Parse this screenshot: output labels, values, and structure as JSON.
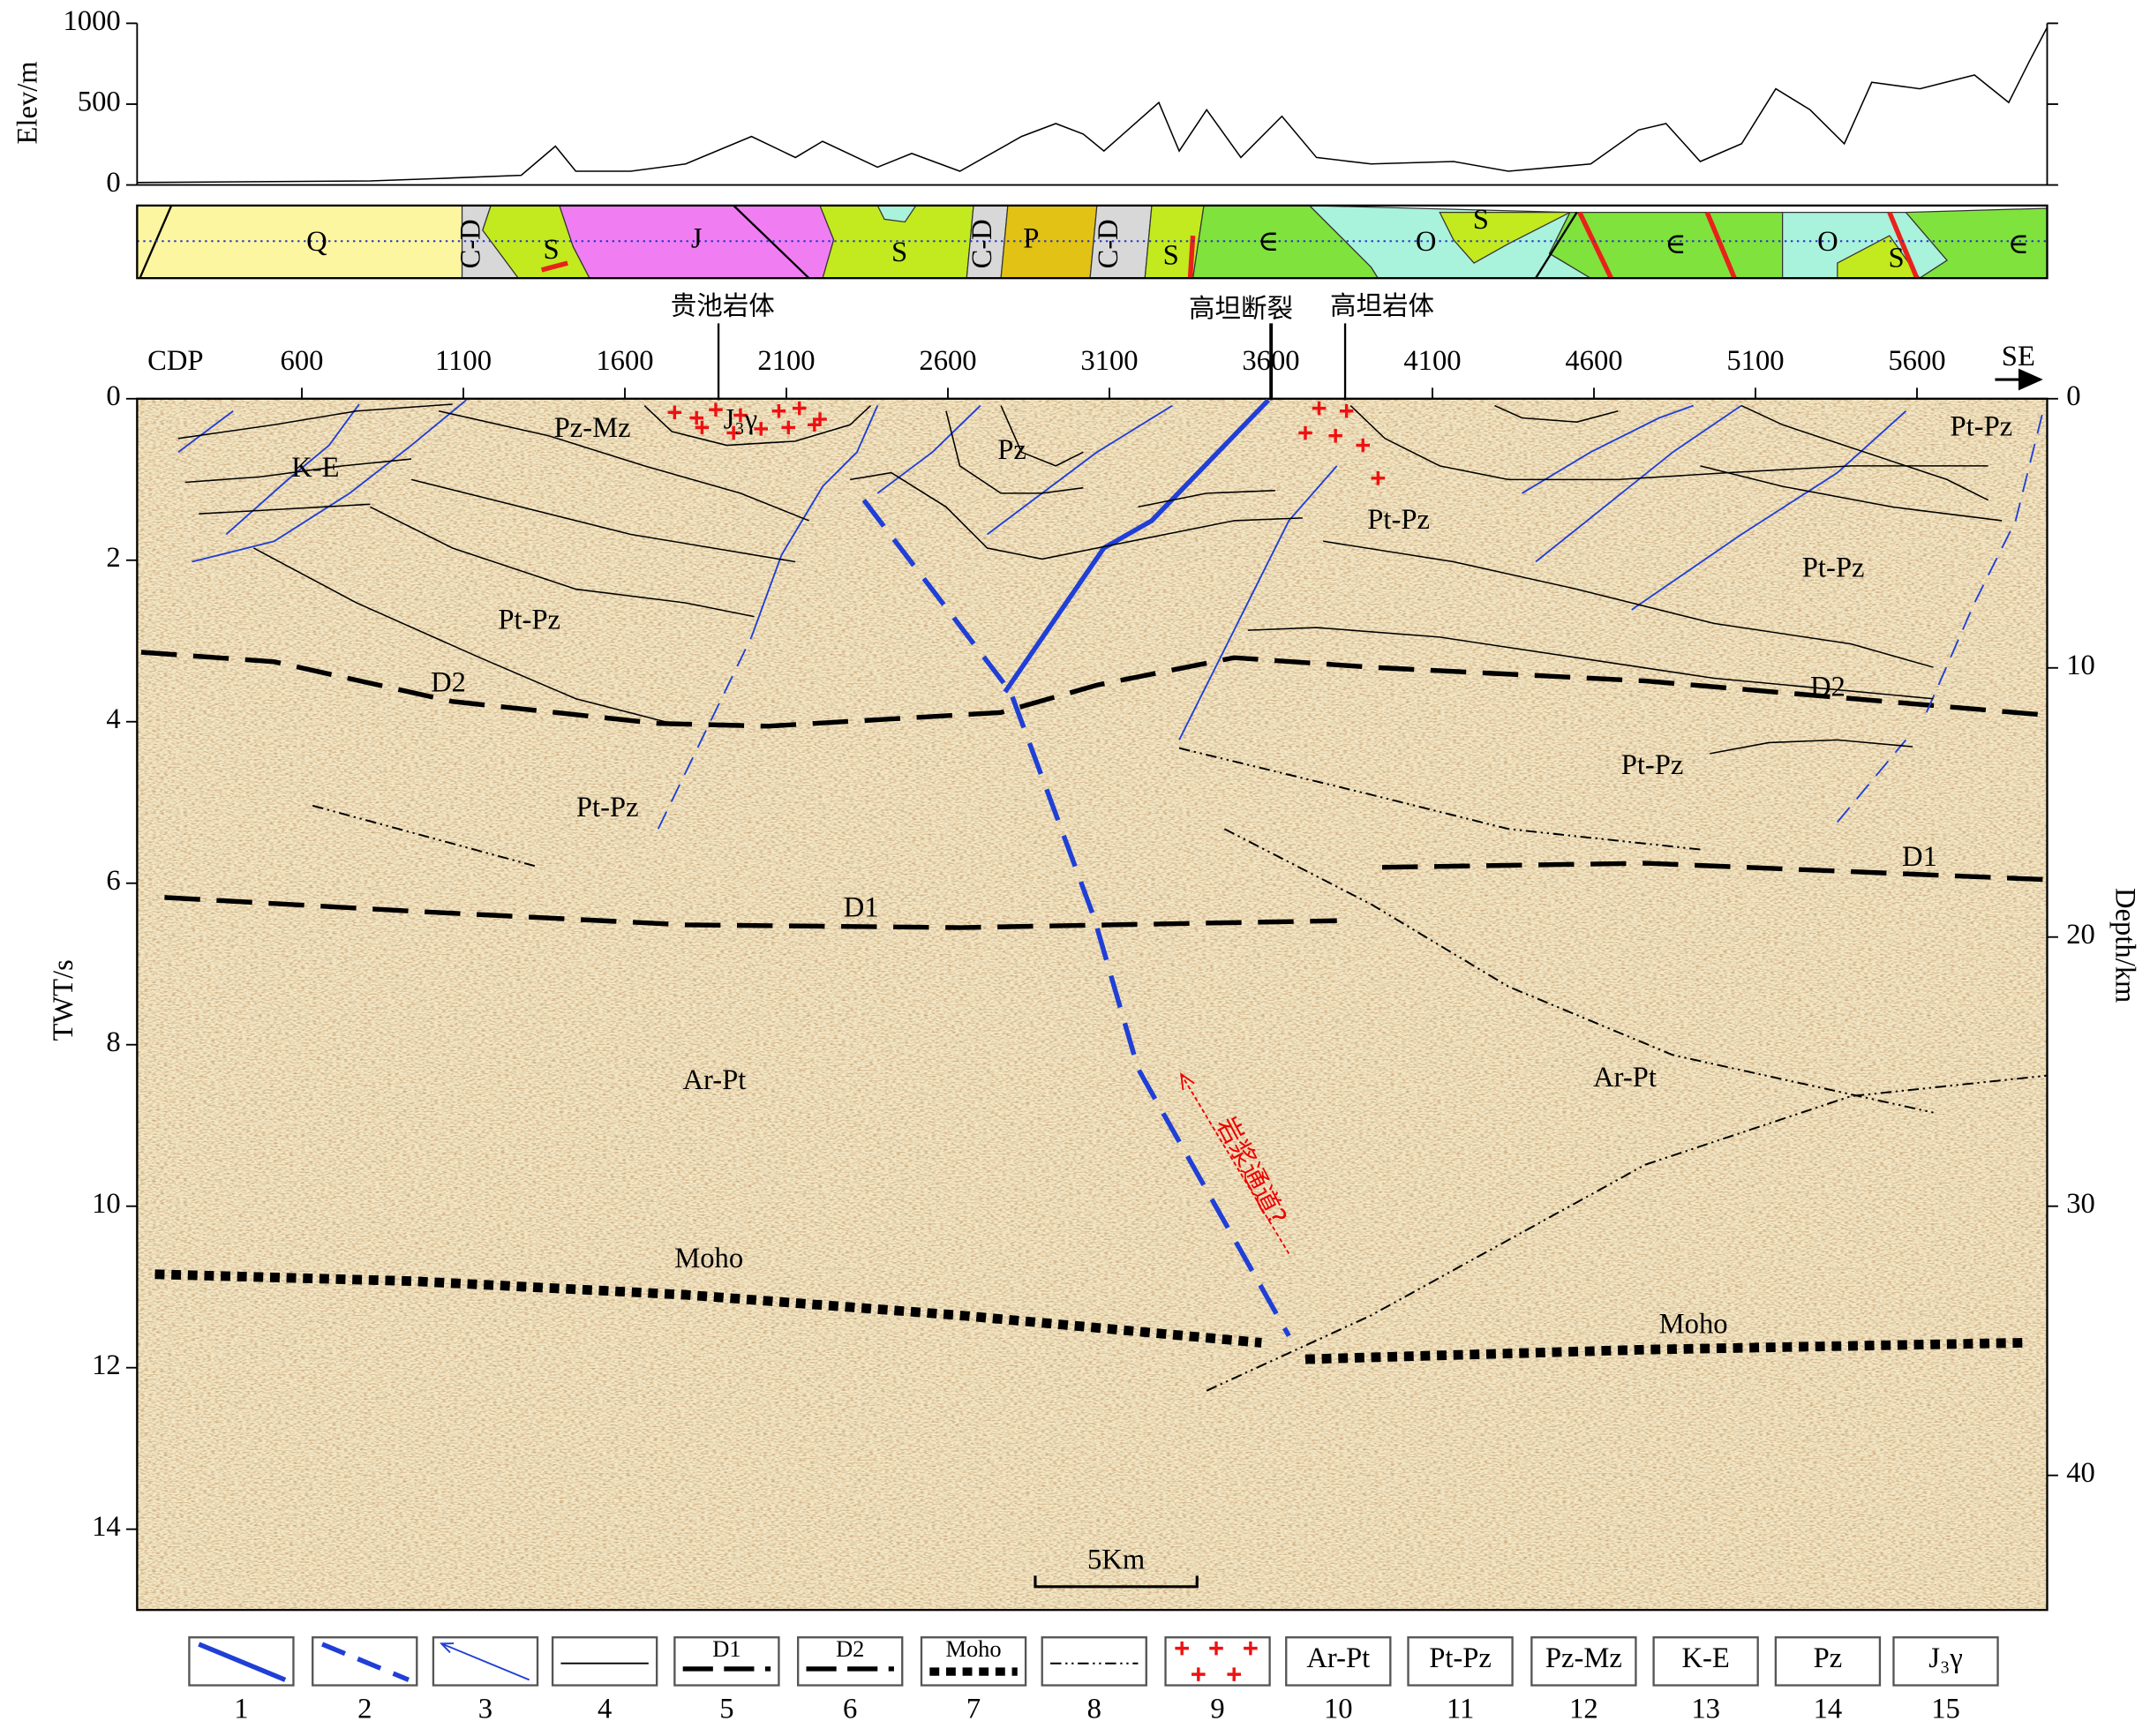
{
  "chart_data": [
    {
      "type": "line",
      "y_label": "Elev/m",
      "color": "#000000",
      "x": [
        90,
        812,
        1024,
        1279,
        1385,
        1448,
        1618,
        1788,
        1992,
        2128,
        2212,
        2382,
        2488,
        2637,
        2828,
        2934,
        3019,
        3083,
        3253,
        3316,
        3401,
        3507,
        3634,
        3741,
        3910,
        4165,
        4335,
        4590,
        4738,
        4823,
        4929,
        5057,
        5163,
        5269,
        5375,
        5460,
        5609,
        5778,
        5884,
        5948,
        6003
      ],
      "values": [
        15,
        25,
        40,
        60,
        240,
        85,
        85,
        130,
        300,
        170,
        270,
        110,
        195,
        85,
        300,
        380,
        315,
        210,
        510,
        210,
        465,
        170,
        425,
        170,
        130,
        145,
        85,
        130,
        340,
        380,
        145,
        255,
        595,
        465,
        255,
        635,
        595,
        680,
        510,
        765,
        975
      ],
      "xlim": [
        90,
        6003
      ],
      "ylim": [
        0,
        1000
      ],
      "yticks": [
        0,
        500,
        1000
      ]
    },
    {
      "type": "section",
      "x_label": "CDP",
      "y_label": "TWT/s",
      "y2_label": "Depth/km",
      "xlim": [
        90,
        6003
      ],
      "xticks": [
        600,
        1100,
        1600,
        2100,
        2600,
        3100,
        3600,
        4100,
        4600,
        5100,
        5600
      ],
      "ylim": [
        0,
        15
      ],
      "yticks": [
        0,
        2,
        4,
        6,
        8,
        10,
        12,
        14
      ],
      "y2lim": [
        0,
        45
      ],
      "y2ticks": [
        0,
        10,
        20,
        30,
        40
      ]
    }
  ],
  "strip": [
    "Q",
    "C-D",
    "S",
    "J",
    "S",
    "C-D",
    "P",
    "C-D",
    "S",
    "∈",
    "O",
    "S",
    "∈",
    "O",
    "S",
    "∈"
  ],
  "callouts": [
    "贵池岩体",
    "高坦断裂",
    "高坦岩体"
  ],
  "direction": "SE",
  "annotations": [
    "Pz-Mz",
    "J₃γ",
    "K-E",
    "Pz",
    "Pt-Pz",
    "Pt-Pz",
    "Pt-Pz",
    "Pt-Pz",
    "D2",
    "D2",
    "Pt-Pz",
    "Pt-Pz",
    "D1",
    "D1",
    "Ar-Pt",
    "Ar-Pt",
    "Moho",
    "Moho",
    "岩浆通道?",
    "5Km"
  ],
  "legend": [
    {
      "number": 1
    },
    {
      "number": 2
    },
    {
      "number": 3
    },
    {
      "number": 4
    },
    {
      "number": 5,
      "label": "D1"
    },
    {
      "number": 6,
      "label": "D2"
    },
    {
      "number": 7,
      "label": "Moho"
    },
    {
      "number": 8
    },
    {
      "number": 9
    },
    {
      "number": 10,
      "label": "Ar-Pt"
    },
    {
      "number": 11,
      "label": "Pt-Pz"
    },
    {
      "number": 12,
      "label": "Pz-Mz"
    },
    {
      "number": 13,
      "label": "K-E"
    },
    {
      "number": 14,
      "label": "Pz"
    },
    {
      "number": 15,
      "label": "J₃γ"
    }
  ]
}
